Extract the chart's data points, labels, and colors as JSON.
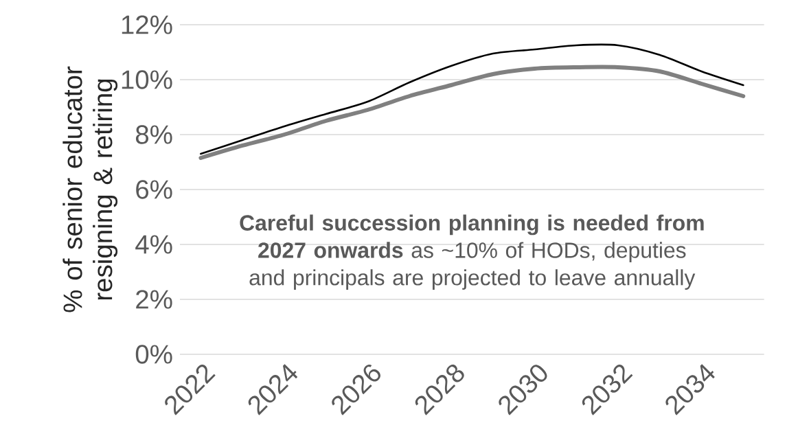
{
  "chart_data": {
    "type": "line",
    "ylabel": "% of senior educator resigning & retiring",
    "x": [
      2022,
      2023,
      2024,
      2025,
      2026,
      2027,
      2028,
      2029,
      2030,
      2031,
      2032,
      2033,
      2034,
      2035
    ],
    "series": [
      {
        "color": "#000000",
        "values": [
          7.3,
          7.8,
          8.3,
          8.75,
          9.2,
          9.9,
          10.5,
          10.95,
          11.1,
          11.25,
          11.25,
          10.9,
          10.3,
          9.8
        ]
      },
      {
        "color": "#808080",
        "values": [
          7.15,
          7.6,
          8.0,
          8.5,
          8.9,
          9.4,
          9.8,
          10.2,
          10.4,
          10.45,
          10.45,
          10.3,
          9.85,
          9.4
        ]
      }
    ],
    "xlim": [
      2021.5,
      2035.5
    ],
    "ylim": [
      0,
      12
    ],
    "xticks": [
      2022,
      2024,
      2026,
      2028,
      2030,
      2032,
      2034
    ],
    "yticks": [
      {
        "value": 0,
        "label": "0%"
      },
      {
        "value": 2,
        "label": "2%"
      },
      {
        "value": 4,
        "label": "4%"
      },
      {
        "value": 6,
        "label": "6%"
      },
      {
        "value": 8,
        "label": "8%"
      },
      {
        "value": 10,
        "label": "10%"
      },
      {
        "value": 12,
        "label": "12%"
      }
    ],
    "grid": "y",
    "marker": "none",
    "line_style": "solid",
    "annotations": [
      "**Careful succession planning is needed from 2027 onwards** as ~10% of HODs, deputies and principals are projected to leave annually"
    ]
  }
}
